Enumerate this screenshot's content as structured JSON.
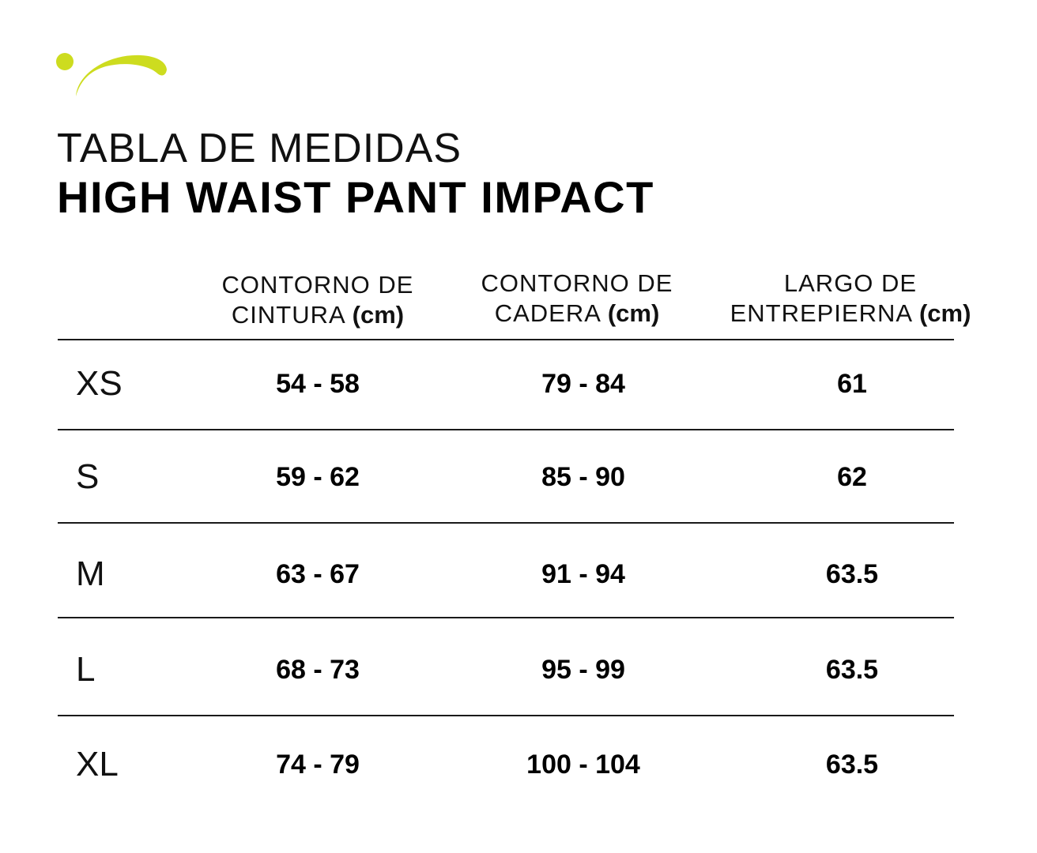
{
  "brand": {
    "logo_icon": "swoosh-logo-icon",
    "accent_color": "#cddc1f"
  },
  "title": {
    "line1": "TABLA DE MEDIDAS",
    "line2": "HIGH WAIST PANT IMPACT"
  },
  "columns": [
    {
      "line1": "CONTORNO DE",
      "line2": "CINTURA",
      "unit": "(cm)"
    },
    {
      "line1": "CONTORNO DE",
      "line2": "CADERA",
      "unit": "(cm)"
    },
    {
      "line1": "LARGO DE",
      "line2": "ENTREPIERNA",
      "unit": "(cm)"
    }
  ],
  "rows": [
    {
      "size": "XS",
      "waist": "54 - 58",
      "hip": "79 - 84",
      "inseam": "61"
    },
    {
      "size": "S",
      "waist": "59 - 62",
      "hip": "85 - 90",
      "inseam": "62"
    },
    {
      "size": "M",
      "waist": "63 - 67",
      "hip": "91 - 94",
      "inseam": "63.5"
    },
    {
      "size": "L",
      "waist": "68 - 73",
      "hip": "95 - 99",
      "inseam": "63.5"
    },
    {
      "size": "XL",
      "waist": "74 - 79",
      "hip": "100 - 104",
      "inseam": "63.5"
    }
  ]
}
